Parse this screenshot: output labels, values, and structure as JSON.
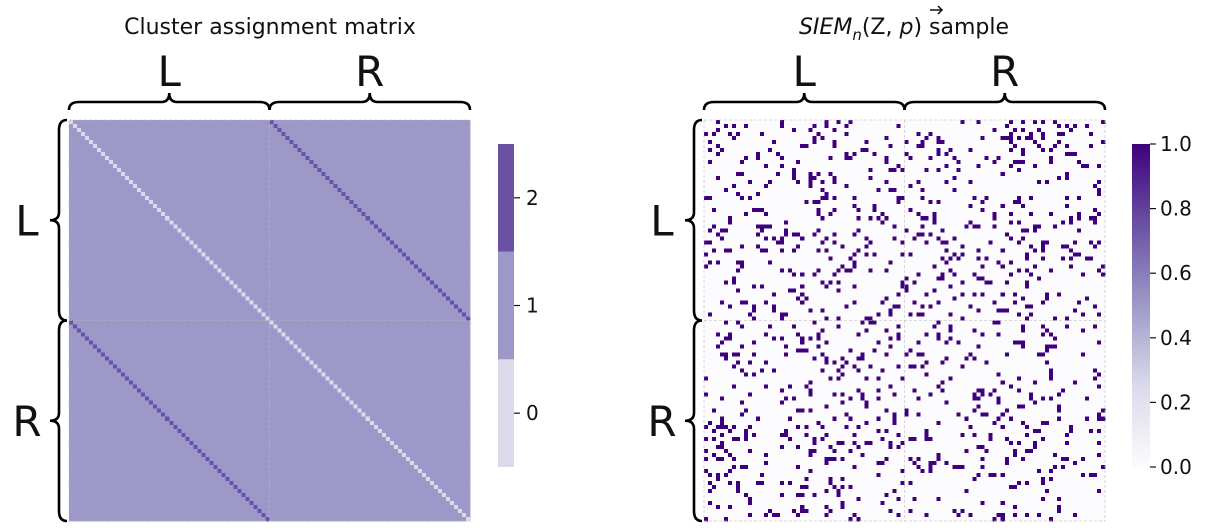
{
  "chart_data": [
    {
      "type": "heatmap",
      "title": "Cluster assignment matrix",
      "n": 100,
      "groups": [
        {
          "label": "L",
          "size": 50
        },
        {
          "label": "R",
          "size": 50
        }
      ],
      "description_values": {
        "diagonal": 0,
        "off_block_diagonal": 2,
        "elsewhere": 1
      },
      "colorbar": {
        "discrete": true,
        "levels": [
          0,
          1,
          2
        ],
        "colors": [
          "#dcdaea",
          "#9c99c8",
          "#6a51a3"
        ],
        "ticks": [
          "0",
          "1",
          "2"
        ],
        "range": [
          -0.5,
          2.5
        ]
      },
      "grid": true
    },
    {
      "type": "heatmap",
      "title_main": "SIEM",
      "title_subscript": "n",
      "title_args": "(Z, ",
      "title_vec": "p",
      "title_close": ")",
      "title_suffix": " sample",
      "n": 100,
      "groups": [
        {
          "label": "L",
          "size": 50
        },
        {
          "label": "R",
          "size": 50
        }
      ],
      "edge_probability": 0.1,
      "colorbar": {
        "colors": [
          "#fcfbfd",
          "#3f007d"
        ],
        "ticks": [
          "0.0",
          "0.2",
          "0.4",
          "0.6",
          "0.8",
          "1.0"
        ],
        "tick_values": [
          0.0,
          0.2,
          0.4,
          0.6,
          0.8,
          1.0
        ],
        "range": [
          0,
          1
        ]
      },
      "grid": true
    }
  ]
}
